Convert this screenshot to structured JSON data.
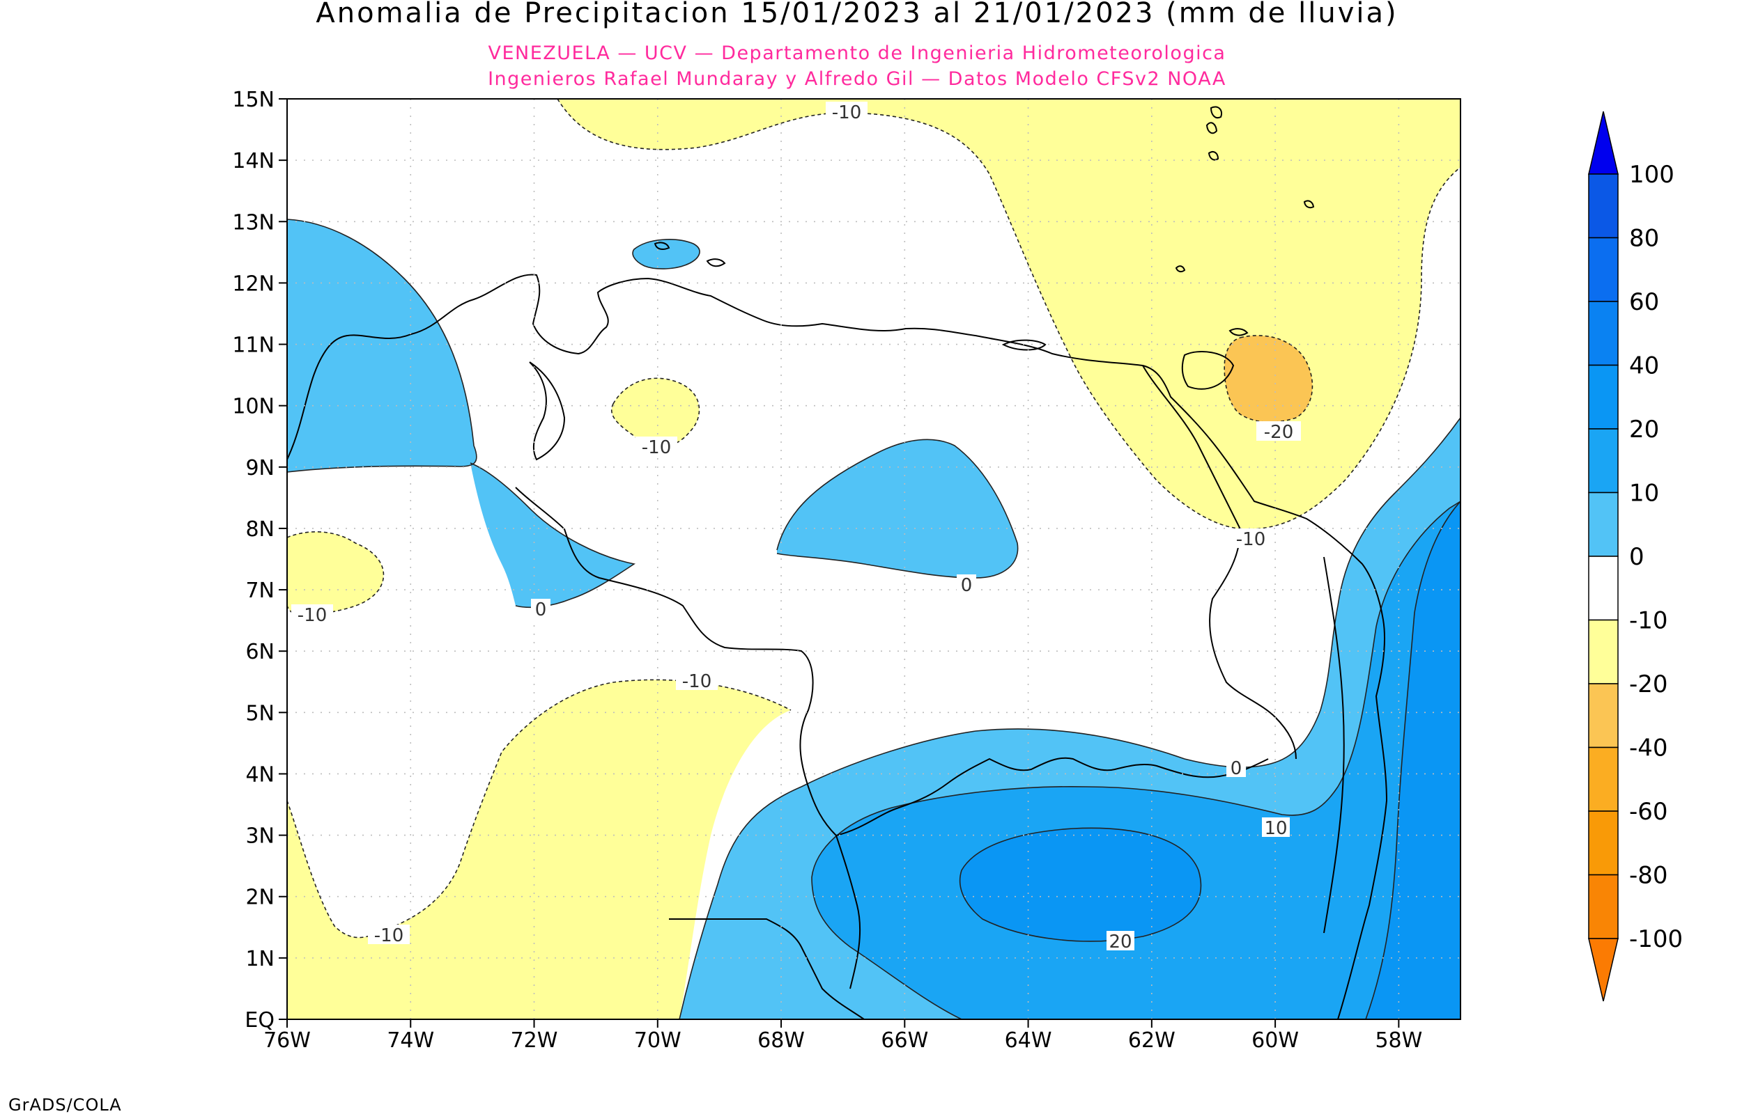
{
  "title": "Anomalia de Precipitacion 15/01/2023 al 21/01/2023 (mm de lluvia)",
  "subtitle_1": "VENEZUELA — UCV — Departamento de Ingenieria Hidrometeorologica",
  "subtitle_2": "Ingenieros Rafael Mundaray y Alfredo Gil — Datos Modelo CFSv2 NOAA",
  "footer": "GrADS/COLA",
  "map": {
    "lon_range": [
      -76,
      -57
    ],
    "lat_range": [
      0,
      15
    ],
    "x_ticks": [
      "76W",
      "74W",
      "72W",
      "70W",
      "68W",
      "66W",
      "64W",
      "62W",
      "60W",
      "58W"
    ],
    "y_ticks": [
      "EQ",
      "1N",
      "2N",
      "3N",
      "4N",
      "5N",
      "6N",
      "7N",
      "8N",
      "9N",
      "10N",
      "11N",
      "12N",
      "13N",
      "14N",
      "15N"
    ],
    "grid": "dotted"
  },
  "contour_labels": [
    "-10",
    "-10",
    "-10",
    "-10",
    "-10",
    "-10",
    "-20",
    "0",
    "0",
    "0",
    "10",
    "20"
  ],
  "legend": {
    "labels": [
      "100",
      "80",
      "60",
      "40",
      "20",
      "10",
      "0",
      "-10",
      "-20",
      "-40",
      "-60",
      "-80",
      "-100"
    ],
    "colors": [
      "#0000ee",
      "#0b58e6",
      "#0b6ef0",
      "#0a82f2",
      "#0a96f4",
      "#1aa5f4",
      "#52c3f6",
      "#ffffff",
      "#ffff99",
      "#fbc554",
      "#fbad22",
      "#f99a07",
      "#f98505",
      "#fb7b03"
    ]
  },
  "colors": {
    "neg10": "#ffff99",
    "neg20": "#fbc554",
    "pos0": "#52c3f6",
    "pos10": "#1aa5f4",
    "pos20": "#0a96f4",
    "subtitle": "#ff2a9d"
  }
}
